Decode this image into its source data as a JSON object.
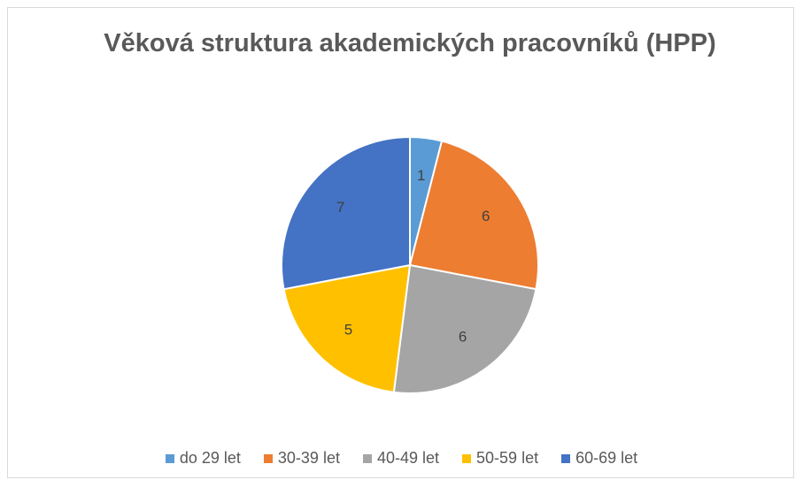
{
  "chart_data": {
    "type": "pie",
    "title": "Věková struktura akademických pracovníků (HPP)",
    "categories": [
      "do 29 let",
      "30-39 let",
      "40-49 let",
      "50-59 let",
      "60-69 let"
    ],
    "values": [
      1,
      6,
      6,
      5,
      7
    ],
    "colors": [
      "#5B9BD5",
      "#ED7D31",
      "#A5A5A5",
      "#FFC000",
      "#4472C4"
    ],
    "legend": "bottom"
  }
}
